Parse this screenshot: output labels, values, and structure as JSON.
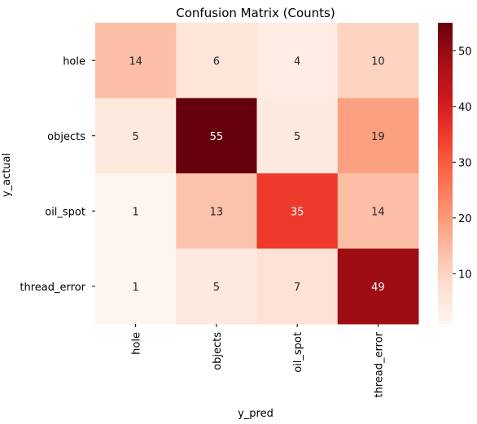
{
  "chart_data": {
    "type": "heatmap",
    "title": "Confusion Matrix (Counts)",
    "xlabel": "y_pred",
    "ylabel": "y_actual",
    "x_categories": [
      "hole",
      "objects",
      "oil_spot",
      "thread_error"
    ],
    "y_categories": [
      "hole",
      "objects",
      "oil_spot",
      "thread_error"
    ],
    "values": [
      [
        14,
        6,
        4,
        10
      ],
      [
        5,
        55,
        5,
        19
      ],
      [
        1,
        13,
        35,
        14
      ],
      [
        1,
        5,
        7,
        49
      ]
    ],
    "colormap": "Reds",
    "colorbar": {
      "range": [
        1,
        55
      ],
      "ticks": [
        10,
        20,
        30,
        40,
        50
      ]
    }
  }
}
